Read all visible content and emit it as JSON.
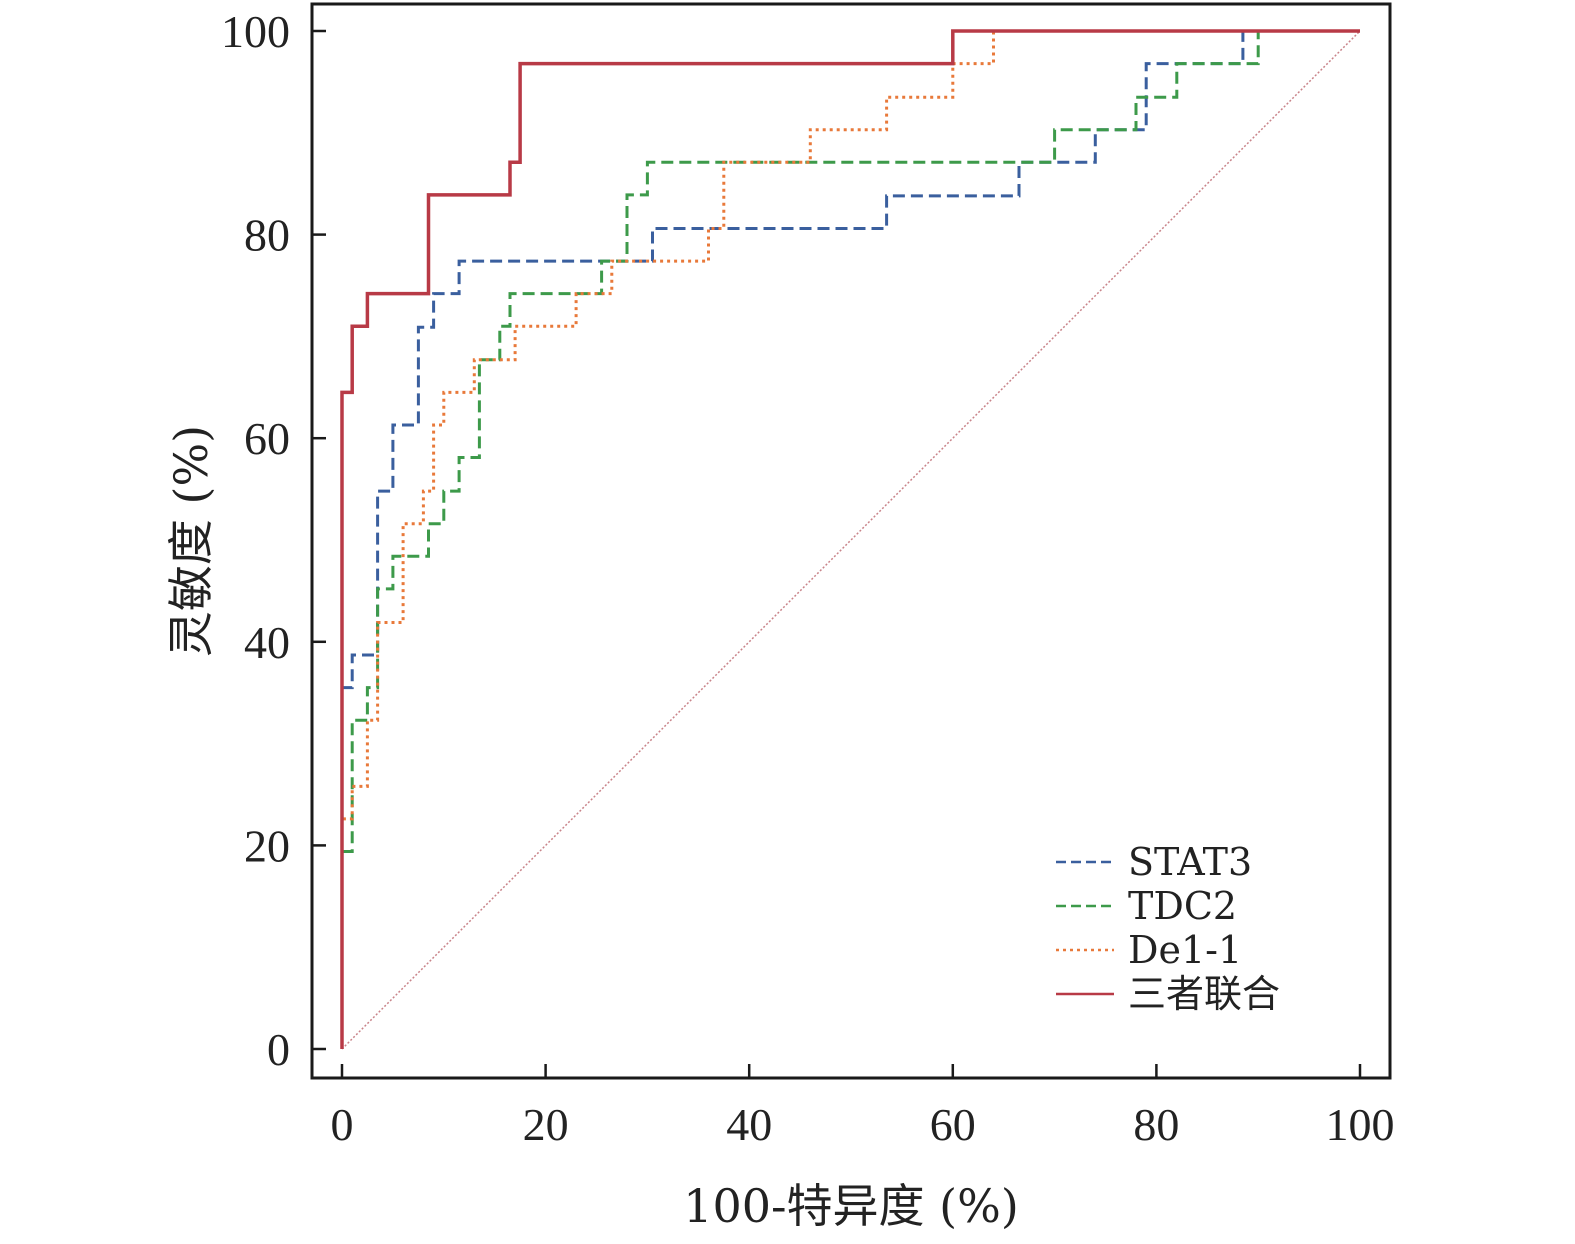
{
  "chart_data": {
    "type": "line",
    "title": "",
    "xlabel": "100-特异度 (%)",
    "ylabel": "灵敏度 (%)",
    "xlim": [
      0,
      100
    ],
    "ylim": [
      0,
      100
    ],
    "xticks": [
      0,
      20,
      40,
      60,
      80,
      100
    ],
    "yticks": [
      0,
      20,
      40,
      60,
      80,
      100
    ],
    "grid": false,
    "legend_position": "bottom-right",
    "series": [
      {
        "name": "STAT3",
        "color": "#3a5f9e",
        "style": "dashed",
        "points": [
          [
            0,
            0
          ],
          [
            0,
            35.5
          ],
          [
            1,
            35.5
          ],
          [
            1,
            38.7
          ],
          [
            3.5,
            38.7
          ],
          [
            3.5,
            54.8
          ],
          [
            5,
            54.8
          ],
          [
            5,
            61.3
          ],
          [
            7.5,
            61.3
          ],
          [
            7.5,
            70.9
          ],
          [
            9,
            70.9
          ],
          [
            9,
            74.2
          ],
          [
            11.5,
            74.2
          ],
          [
            11.5,
            77.4
          ],
          [
            30.5,
            77.4
          ],
          [
            30.5,
            80.6
          ],
          [
            53.5,
            80.6
          ],
          [
            53.5,
            83.8
          ],
          [
            66.5,
            83.8
          ],
          [
            66.5,
            87.1
          ],
          [
            74,
            87.1
          ],
          [
            74,
            90.3
          ],
          [
            79,
            90.3
          ],
          [
            79,
            96.8
          ],
          [
            88.5,
            96.8
          ],
          [
            88.5,
            100
          ],
          [
            100,
            100
          ]
        ]
      },
      {
        "name": "TDC2",
        "color": "#3d9a4a",
        "style": "dashed",
        "points": [
          [
            0,
            0
          ],
          [
            0,
            19.4
          ],
          [
            1,
            19.4
          ],
          [
            1,
            32.3
          ],
          [
            2.5,
            32.3
          ],
          [
            2.5,
            35.5
          ],
          [
            3.5,
            35.5
          ],
          [
            3.5,
            45.2
          ],
          [
            5,
            45.2
          ],
          [
            5,
            48.4
          ],
          [
            8.5,
            48.4
          ],
          [
            8.5,
            51.6
          ],
          [
            10,
            51.6
          ],
          [
            10,
            54.8
          ],
          [
            11.5,
            54.8
          ],
          [
            11.5,
            58.1
          ],
          [
            13.5,
            58.1
          ],
          [
            13.5,
            67.7
          ],
          [
            15.5,
            67.7
          ],
          [
            15.5,
            71.0
          ],
          [
            16.5,
            71.0
          ],
          [
            16.5,
            74.2
          ],
          [
            25.5,
            74.2
          ],
          [
            25.5,
            77.4
          ],
          [
            28,
            77.4
          ],
          [
            28,
            83.9
          ],
          [
            30,
            83.9
          ],
          [
            30,
            87.1
          ],
          [
            70,
            87.1
          ],
          [
            70,
            90.3
          ],
          [
            78,
            90.3
          ],
          [
            78,
            93.5
          ],
          [
            82,
            93.5
          ],
          [
            82,
            96.8
          ],
          [
            90,
            96.8
          ],
          [
            90,
            100
          ],
          [
            100,
            100
          ]
        ]
      },
      {
        "name": "De1-1",
        "color": "#e8793a",
        "style": "dotted",
        "points": [
          [
            0,
            0
          ],
          [
            0,
            22.6
          ],
          [
            1,
            22.6
          ],
          [
            1,
            25.8
          ],
          [
            2.5,
            25.8
          ],
          [
            2.5,
            32.3
          ],
          [
            3.5,
            32.3
          ],
          [
            3.5,
            41.9
          ],
          [
            6,
            41.9
          ],
          [
            6,
            51.6
          ],
          [
            8,
            51.6
          ],
          [
            8,
            54.8
          ],
          [
            9,
            54.8
          ],
          [
            9,
            61.3
          ],
          [
            10,
            61.3
          ],
          [
            10,
            64.5
          ],
          [
            13,
            64.5
          ],
          [
            13,
            67.7
          ],
          [
            17,
            67.7
          ],
          [
            17,
            71.0
          ],
          [
            23,
            71.0
          ],
          [
            23,
            74.2
          ],
          [
            26.5,
            74.2
          ],
          [
            26.5,
            77.4
          ],
          [
            36,
            77.4
          ],
          [
            36,
            80.6
          ],
          [
            37.5,
            80.6
          ],
          [
            37.5,
            87.1
          ],
          [
            46,
            87.1
          ],
          [
            46,
            90.3
          ],
          [
            53.5,
            90.3
          ],
          [
            53.5,
            93.5
          ],
          [
            60,
            93.5
          ],
          [
            60,
            96.8
          ],
          [
            64,
            96.8
          ],
          [
            64,
            100
          ],
          [
            100,
            100
          ]
        ]
      },
      {
        "name": "三者联合",
        "color": "#b83a46",
        "style": "solid",
        "points": [
          [
            0,
            0
          ],
          [
            0,
            64.5
          ],
          [
            1,
            64.5
          ],
          [
            1,
            71.0
          ],
          [
            2.5,
            71.0
          ],
          [
            2.5,
            74.2
          ],
          [
            8.5,
            74.2
          ],
          [
            8.5,
            83.9
          ],
          [
            16.5,
            83.9
          ],
          [
            16.5,
            87.1
          ],
          [
            17.5,
            87.1
          ],
          [
            17.5,
            96.8
          ],
          [
            60,
            96.8
          ],
          [
            60,
            100
          ],
          [
            100,
            100
          ]
        ]
      },
      {
        "name": "",
        "color": "#c9848a",
        "style": "reference",
        "points": [
          [
            0,
            0
          ],
          [
            100,
            100
          ]
        ]
      }
    ]
  }
}
